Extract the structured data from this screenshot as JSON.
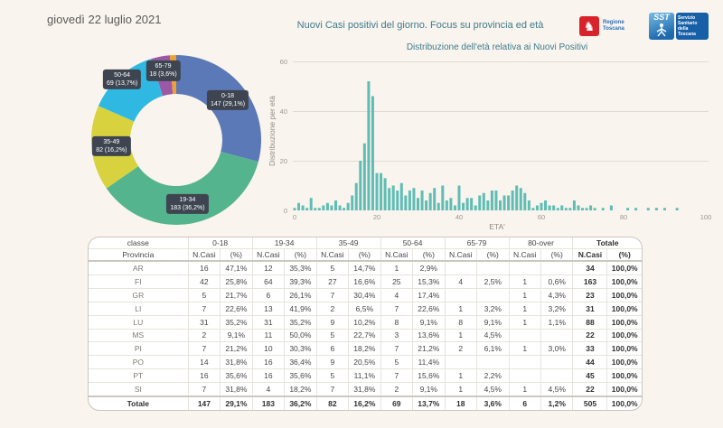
{
  "page": {
    "date": "giovedì 22 luglio 2021",
    "title": "Nuovi Casi positivi del giorno. Focus su provincia ed età",
    "background_color": "#f9f4ed"
  },
  "logos": {
    "regione_label": "Regione Toscana",
    "sst_abbr": "SST",
    "sst_label": "Servizio Sanitario della Toscana"
  },
  "chart_data": [
    {
      "type": "pie",
      "subtype": "donut",
      "categories": [
        "0-18",
        "19-34",
        "35-49",
        "50-64",
        "65-79",
        "80-over"
      ],
      "values": [
        147,
        183,
        82,
        69,
        18,
        6
      ],
      "percents": [
        "29,1%",
        "36,2%",
        "16,2%",
        "13,7%",
        "3,6%",
        "1,2%"
      ],
      "colors": [
        "#5b79b6",
        "#54b48e",
        "#d7d23e",
        "#2fb9e2",
        "#9b59a5",
        "#f0a22e"
      ],
      "labels": [
        {
          "line1": "0-18",
          "line2": "147 (29,1%)"
        },
        {
          "line1": "19-34",
          "line2": "183 (36,2%)"
        },
        {
          "line1": "35-49",
          "line2": "82 (16,2%)"
        },
        {
          "line1": "50-64",
          "line2": "69 (13,7%)"
        },
        {
          "line1": "65-79",
          "line2": "18 (3,6%)"
        }
      ],
      "label_badge_color": "#3e4551",
      "legend": "none"
    },
    {
      "type": "bar",
      "title": "Distribuzione dell'età relativa ai Nuovi Positivi",
      "xlabel": "ETA'",
      "ylabel": "Distribuzione per età",
      "x": [
        0,
        1,
        2,
        3,
        4,
        5,
        6,
        7,
        8,
        9,
        10,
        11,
        12,
        13,
        14,
        15,
        16,
        17,
        18,
        19,
        20,
        21,
        22,
        23,
        24,
        25,
        26,
        27,
        28,
        29,
        30,
        31,
        32,
        33,
        34,
        35,
        36,
        37,
        38,
        39,
        40,
        41,
        42,
        43,
        44,
        45,
        46,
        47,
        48,
        49,
        50,
        51,
        52,
        53,
        54,
        55,
        56,
        57,
        58,
        59,
        60,
        61,
        62,
        63,
        64,
        65,
        66,
        67,
        68,
        69,
        70,
        71,
        72,
        73,
        74,
        75,
        76,
        77,
        78,
        79,
        80,
        81,
        82,
        83,
        84,
        85,
        86,
        87,
        88,
        89,
        90,
        91,
        92,
        93,
        94,
        95,
        96,
        97,
        98,
        99,
        100
      ],
      "values": [
        1,
        3,
        2,
        1,
        5,
        1,
        1,
        2,
        3,
        2,
        4,
        2,
        1,
        3,
        6,
        11,
        20,
        27,
        52,
        46,
        15,
        15,
        13,
        9,
        10,
        8,
        11,
        6,
        8,
        9,
        5,
        8,
        4,
        7,
        9,
        3,
        10,
        4,
        5,
        2,
        10,
        3,
        5,
        5,
        2,
        6,
        7,
        4,
        8,
        8,
        4,
        6,
        6,
        8,
        10,
        9,
        7,
        4,
        1,
        2,
        3,
        4,
        2,
        2,
        1,
        2,
        1,
        1,
        4,
        2,
        1,
        1,
        2,
        1,
        0,
        1,
        0,
        2,
        0,
        0,
        0,
        1,
        0,
        1,
        0,
        0,
        1,
        0,
        1,
        0,
        1,
        0,
        0,
        1,
        0,
        0,
        0,
        0,
        0,
        0,
        0
      ],
      "ylim": [
        0,
        60
      ],
      "yticks": [
        "0",
        "20",
        "40",
        "60"
      ],
      "xticks": [
        "0",
        "20",
        "40",
        "60",
        "80",
        "100"
      ],
      "bar_color": "#5fbdb5",
      "grid": true
    }
  ],
  "table": {
    "header": {
      "classe": "classe",
      "provincia": "Provincia",
      "ncasi": "N.Casi",
      "pct": "(%)",
      "groups": [
        "0-18",
        "19-34",
        "35-49",
        "50-64",
        "65-79",
        "80-over"
      ],
      "totale": "Totale"
    },
    "rows": [
      {
        "provincia": "AR",
        "cells": [
          "16",
          "47,1%",
          "12",
          "35,3%",
          "5",
          "14,7%",
          "1",
          "2,9%",
          "",
          "",
          "",
          "",
          "34",
          "100,0%"
        ]
      },
      {
        "provincia": "FI",
        "cells": [
          "42",
          "25,8%",
          "64",
          "39,3%",
          "27",
          "16,6%",
          "25",
          "15,3%",
          "4",
          "2,5%",
          "1",
          "0,6%",
          "163",
          "100,0%"
        ]
      },
      {
        "provincia": "GR",
        "cells": [
          "5",
          "21,7%",
          "6",
          "26,1%",
          "7",
          "30,4%",
          "4",
          "17,4%",
          "",
          "",
          "1",
          "4,3%",
          "23",
          "100,0%"
        ]
      },
      {
        "provincia": "LI",
        "cells": [
          "7",
          "22,6%",
          "13",
          "41,9%",
          "2",
          "6,5%",
          "7",
          "22,6%",
          "1",
          "3,2%",
          "1",
          "3,2%",
          "31",
          "100,0%"
        ]
      },
      {
        "provincia": "LU",
        "cells": [
          "31",
          "35,2%",
          "31",
          "35,2%",
          "9",
          "10,2%",
          "8",
          "9,1%",
          "8",
          "9,1%",
          "1",
          "1,1%",
          "88",
          "100,0%"
        ]
      },
      {
        "provincia": "MS",
        "cells": [
          "2",
          "9,1%",
          "11",
          "50,0%",
          "5",
          "22,7%",
          "3",
          "13,6%",
          "1",
          "4,5%",
          "",
          "",
          "22",
          "100,0%"
        ]
      },
      {
        "provincia": "PI",
        "cells": [
          "7",
          "21,2%",
          "10",
          "30,3%",
          "6",
          "18,2%",
          "7",
          "21,2%",
          "2",
          "6,1%",
          "1",
          "3,0%",
          "33",
          "100,0%"
        ]
      },
      {
        "provincia": "PO",
        "cells": [
          "14",
          "31,8%",
          "16",
          "36,4%",
          "9",
          "20,5%",
          "5",
          "11,4%",
          "",
          "",
          "",
          "",
          "44",
          "100,0%"
        ]
      },
      {
        "provincia": "PT",
        "cells": [
          "16",
          "35,6%",
          "16",
          "35,6%",
          "5",
          "11,1%",
          "7",
          "15,6%",
          "1",
          "2,2%",
          "",
          "",
          "45",
          "100,0%"
        ]
      },
      {
        "provincia": "SI",
        "cells": [
          "7",
          "31,8%",
          "4",
          "18,2%",
          "7",
          "31,8%",
          "2",
          "9,1%",
          "1",
          "4,5%",
          "1",
          "4,5%",
          "22",
          "100,0%"
        ]
      },
      {
        "provincia": "Totale",
        "cells": [
          "147",
          "29,1%",
          "183",
          "36,2%",
          "82",
          "16,2%",
          "69",
          "13,7%",
          "18",
          "3,6%",
          "6",
          "1,2%",
          "505",
          "100,0%"
        ]
      }
    ]
  }
}
